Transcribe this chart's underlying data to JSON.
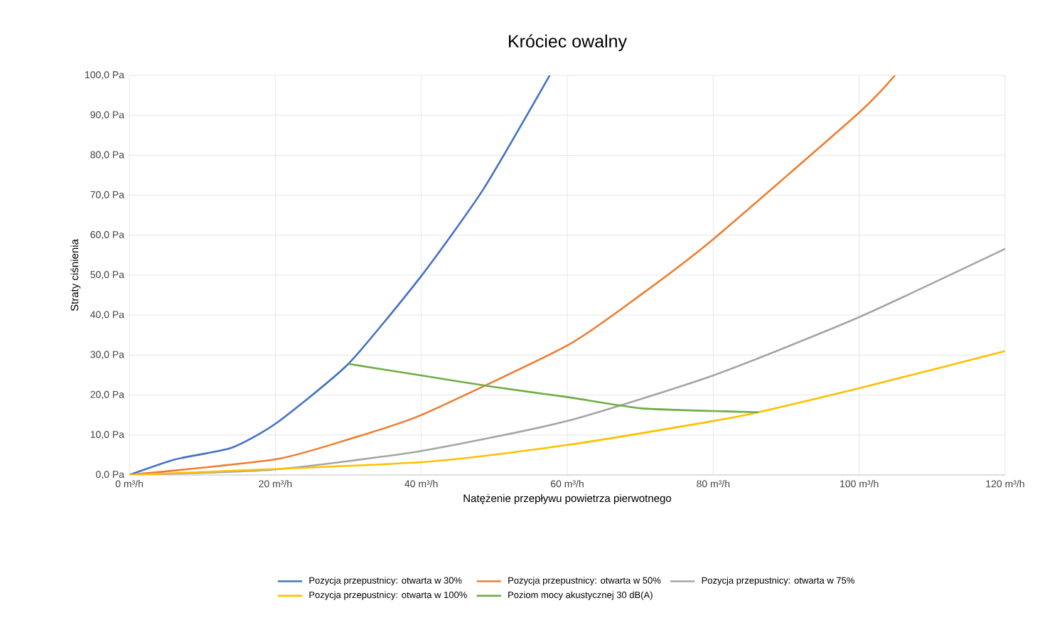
{
  "chart_data": {
    "type": "line",
    "title": "Króciec owalny",
    "xlabel": "Natężenie przepływu powietrza pierwotnego",
    "ylabel": "Straty ciśnienia",
    "xlim": [
      0,
      120
    ],
    "ylim": [
      0,
      100
    ],
    "xticks": [
      {
        "value": 0,
        "label": "0 m³/h"
      },
      {
        "value": 20,
        "label": "20 m³/h"
      },
      {
        "value": 40,
        "label": "40 m³/h"
      },
      {
        "value": 60,
        "label": "60 m³/h"
      },
      {
        "value": 80,
        "label": "80 m³/h"
      },
      {
        "value": 100,
        "label": "100 m³/h"
      },
      {
        "value": 120,
        "label": "120 m³/h"
      }
    ],
    "yticks": [
      {
        "value": 0,
        "label": "0,0 Pa"
      },
      {
        "value": 10,
        "label": "10,0 Pa"
      },
      {
        "value": 20,
        "label": "20,0 Pa"
      },
      {
        "value": 30,
        "label": "30,0 Pa"
      },
      {
        "value": 40,
        "label": "40,0 Pa"
      },
      {
        "value": 50,
        "label": "50,0 Pa"
      },
      {
        "value": 60,
        "label": "60,0 Pa"
      },
      {
        "value": 70,
        "label": "70,0 Pa"
      },
      {
        "value": 80,
        "label": "80,0 Pa"
      },
      {
        "value": 90,
        "label": "90,0 Pa"
      },
      {
        "value": 100,
        "label": "100,0 Pa"
      }
    ],
    "grid": true,
    "legend": "bottom",
    "series": [
      {
        "name": "Pozycja przepustnicy: otwarta w 30%",
        "color": "#4472c4",
        "x": [
          0,
          6.3,
          14,
          20,
          30,
          40,
          48.5,
          57.6
        ],
        "values": [
          0,
          3.9,
          6.8,
          12.8,
          27.8,
          49.8,
          71.5,
          100
        ]
      },
      {
        "name": "Pozycja przepustnicy: otwarta w 50%",
        "color": "#ed7d31",
        "x": [
          0,
          20,
          30,
          40,
          60,
          70,
          80,
          100,
          104.9
        ],
        "values": [
          0,
          3.9,
          8.9,
          15,
          32.4,
          45,
          59,
          90.7,
          100
        ]
      },
      {
        "name": "Pozycja przepustnicy: otwarta w 75%",
        "color": "#a5a5a5",
        "x": [
          0,
          20,
          40,
          60,
          80,
          100,
          120
        ],
        "values": [
          0,
          1.4,
          6,
          13.5,
          24.9,
          39.5,
          56.6
        ]
      },
      {
        "name": "Pozycja przepustnicy: otwarta w 100%",
        "color": "#ffc000",
        "x": [
          0,
          40,
          60,
          80,
          86.2,
          100,
          120
        ],
        "values": [
          0,
          3.2,
          7.5,
          13.5,
          15.7,
          21.7,
          31
        ]
      },
      {
        "name": "Poziom mocy akustycznej 30 dB(A)",
        "color": "#70ad47",
        "x": [
          30,
          40,
          50,
          60,
          70,
          80,
          86.2
        ],
        "values": [
          27.8,
          24.9,
          22,
          19.5,
          16.7,
          16,
          15.7
        ]
      }
    ]
  }
}
